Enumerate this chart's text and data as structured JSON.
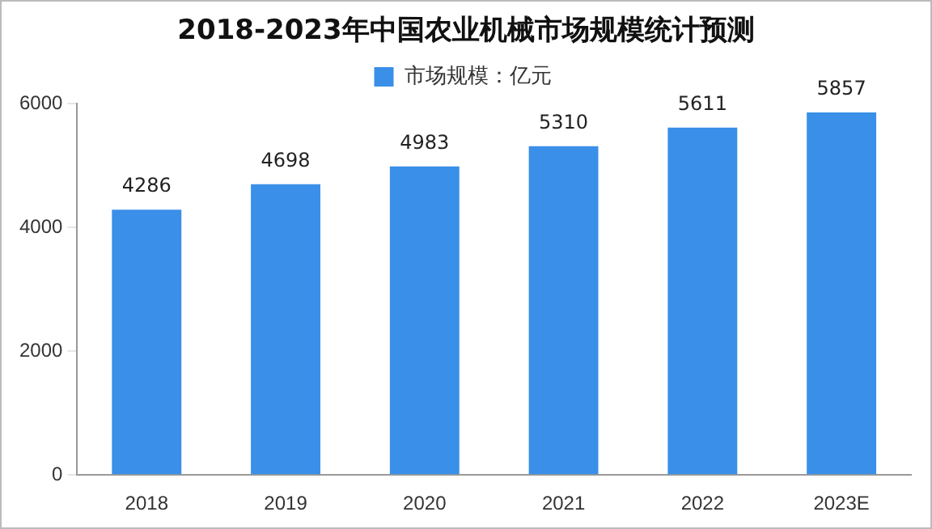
{
  "chart_data": {
    "type": "bar",
    "title": "2018-2023年中国农业机械市场规模统计预测",
    "categories": [
      "2018",
      "2019",
      "2020",
      "2021",
      "2022",
      "2023E"
    ],
    "series": [
      {
        "name": "市场规模：亿元",
        "color": "#3a8fe8",
        "values": [
          4286,
          4698,
          4983,
          5310,
          5611,
          5857
        ]
      }
    ],
    "ylim": [
      0,
      6000
    ],
    "yticks": [
      0,
      2000,
      4000,
      6000
    ],
    "grid": false,
    "legend": "top",
    "data_labels": true
  }
}
